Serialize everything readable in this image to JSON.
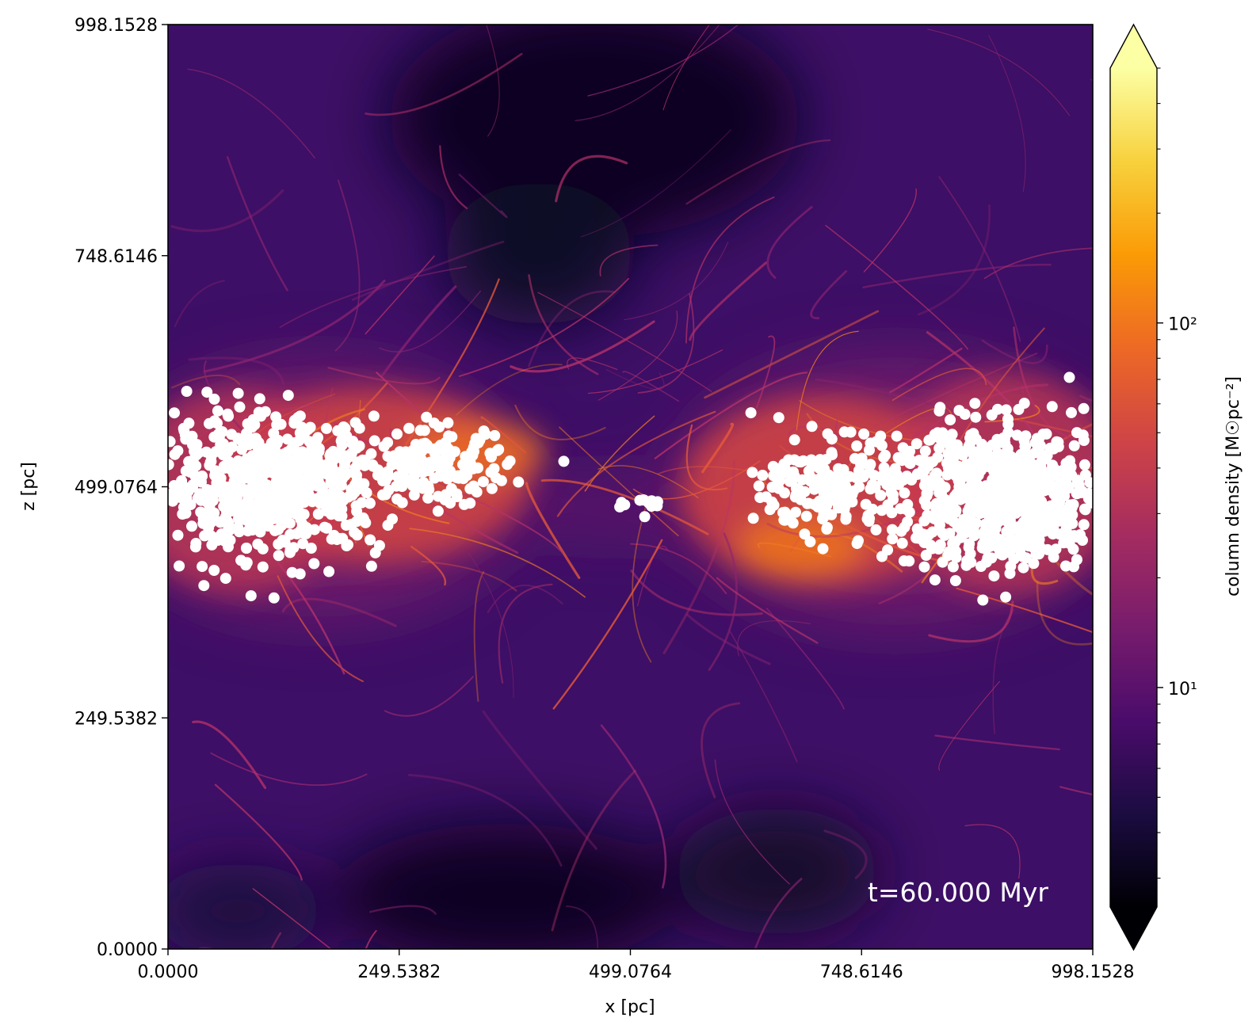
{
  "chart_data": {
    "type": "heatmap",
    "title": "",
    "xlabel": "x [pc]",
    "ylabel": "z [pc]",
    "xlim": [
      0.0,
      998.1528
    ],
    "ylim": [
      0.0,
      998.1528
    ],
    "x_ticks": [
      "0.0000",
      "249.5382",
      "499.0764",
      "748.6146",
      "998.1528"
    ],
    "y_ticks": [
      "0.0000",
      "249.5382",
      "499.0764",
      "748.6146",
      "998.1528"
    ],
    "x_tick_values": [
      0.0,
      249.5382,
      499.0764,
      748.6146,
      998.1528
    ],
    "y_tick_values": [
      0.0,
      249.5382,
      499.0764,
      748.6146,
      998.1528
    ],
    "colormap": "inferno",
    "colorbar": {
      "label": "column density [M☉pc⁻²]",
      "scale": "log",
      "range": [
        2.5,
        500
      ],
      "extend": "both",
      "major_ticks": [
        {
          "value": 10,
          "label": "10¹"
        },
        {
          "value": 100,
          "label": "10²"
        }
      ],
      "colors": [
        "#000004",
        "#1b0c41",
        "#4a0c6b",
        "#781c6d",
        "#a52c60",
        "#cf4446",
        "#ed6925",
        "#fb9b06",
        "#f7d13d",
        "#fcffa4"
      ]
    },
    "annotation": "t=60.000 Myr",
    "background_color": "#3d0f66",
    "particle_color": "#ffffff",
    "particle_clusters": [
      {
        "x_center": 110,
        "z_center": 500,
        "x_spread": 110,
        "z_spread": 65,
        "count": 700
      },
      {
        "x_center": 290,
        "z_center": 520,
        "x_spread": 70,
        "z_spread": 35,
        "count": 160
      },
      {
        "x_center": 900,
        "z_center": 490,
        "x_spread": 110,
        "z_spread": 70,
        "count": 750
      },
      {
        "x_center": 720,
        "z_center": 500,
        "x_spread": 70,
        "z_spread": 45,
        "count": 200
      },
      {
        "x_center": 520,
        "z_center": 480,
        "x_spread": 25,
        "z_spread": 10,
        "count": 12
      }
    ]
  }
}
